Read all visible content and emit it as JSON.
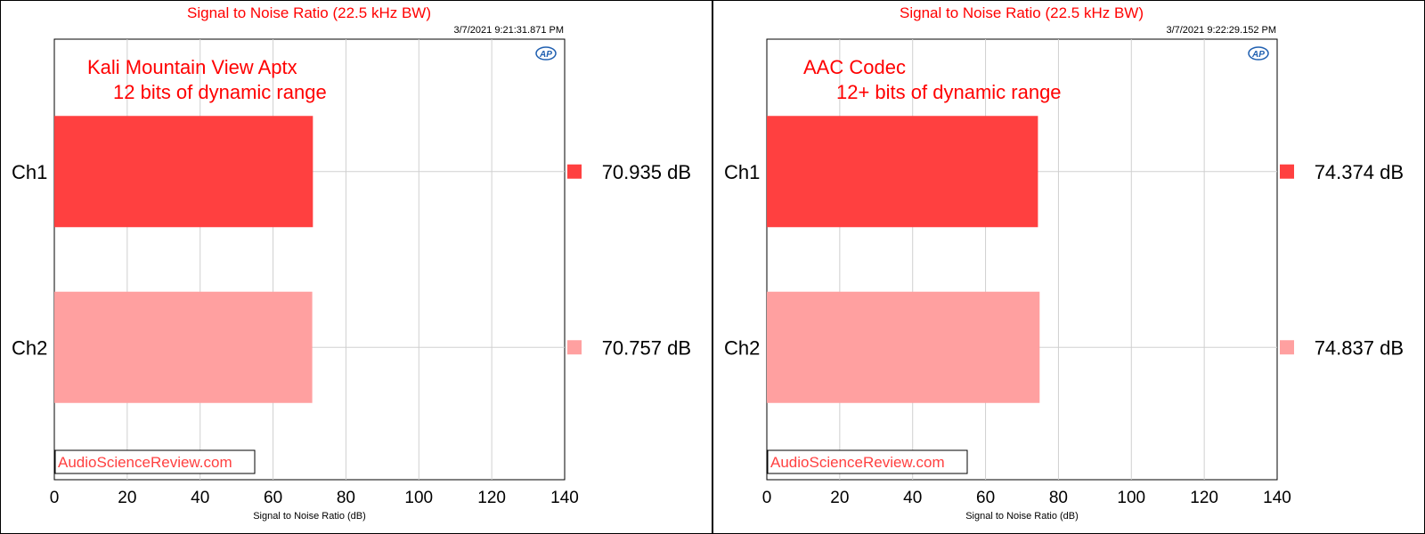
{
  "chart_data": [
    {
      "type": "bar",
      "orientation": "horizontal",
      "title": "Signal to Noise Ratio (22.5 kHz BW)",
      "timestamp": "3/7/2021 9:21:31.871 PM",
      "annotation_lines": [
        "Kali Mountain View Aptx",
        "12 bits of dynamic range"
      ],
      "watermark": "AudioScienceReview.com",
      "xlabel": "Signal to Noise Ratio (dB)",
      "xlim": [
        0,
        140
      ],
      "xticks": [
        "0",
        "20",
        "40",
        "60",
        "80",
        "100",
        "120",
        "140"
      ],
      "grid": true,
      "categories": [
        "Ch1",
        "Ch2"
      ],
      "values": [
        70.935,
        70.757
      ],
      "value_labels": [
        "70.935  dB",
        "70.757  dB"
      ],
      "colors": [
        "#ff4040",
        "#ffa0a0"
      ],
      "title_color": "#ff0000",
      "annotation_color": "#ff0000"
    },
    {
      "type": "bar",
      "orientation": "horizontal",
      "title": "Signal to Noise Ratio (22.5 kHz BW)",
      "timestamp": "3/7/2021 9:22:29.152 PM",
      "annotation_lines": [
        "AAC Codec",
        "12+ bits of dynamic range"
      ],
      "watermark": "AudioScienceReview.com",
      "xlabel": "Signal to Noise Ratio (dB)",
      "xlim": [
        0,
        140
      ],
      "xticks": [
        "0",
        "20",
        "40",
        "60",
        "80",
        "100",
        "120",
        "140"
      ],
      "grid": true,
      "categories": [
        "Ch1",
        "Ch2"
      ],
      "values": [
        74.374,
        74.837
      ],
      "value_labels": [
        "74.374  dB",
        "74.837  dB"
      ],
      "colors": [
        "#ff4040",
        "#ffa0a0"
      ],
      "title_color": "#ff0000",
      "annotation_color": "#ff0000"
    }
  ]
}
